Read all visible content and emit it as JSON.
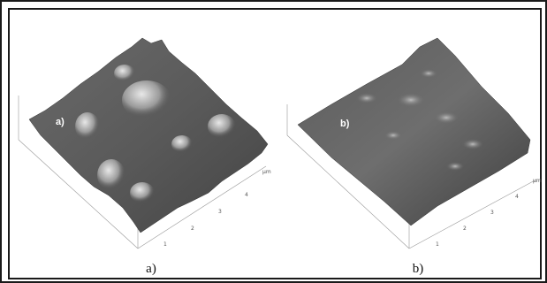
{
  "panels": [
    {
      "tag": "a)",
      "caption": "a)",
      "axis_ticks": [
        "1",
        "2",
        "3",
        "4"
      ],
      "axis_unit": "µm"
    },
    {
      "tag": "b)",
      "caption": "b)",
      "axis_ticks": [
        "1",
        "2",
        "3",
        "4"
      ],
      "axis_unit": "µm"
    }
  ],
  "colors": {
    "surface_dark": "#3a3a3a",
    "surface_mid": "#7a7a7a",
    "surface_light": "#d0d0d0",
    "frame": "#1a1a1a"
  }
}
